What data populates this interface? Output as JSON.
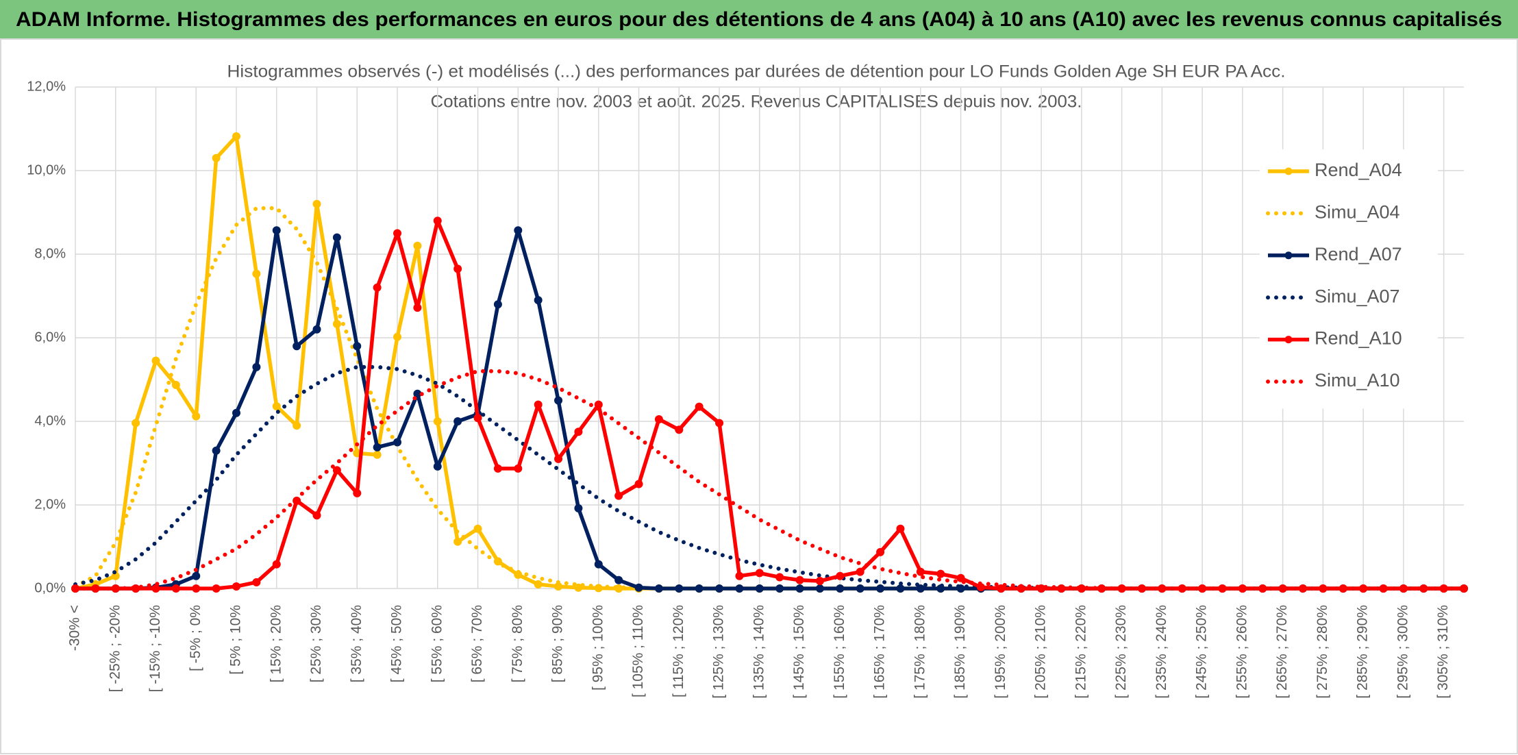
{
  "header": {
    "title": "ADAM Informe. Histogrammes des performances en euros pour des détentions de 4 ans (A04) à 10 ans (A10) avec les revenus connus capitalisés"
  },
  "chart_data": {
    "type": "line",
    "title": "Histogrammes observés (-) et modélisés (...) des performances par durées de détention pour LO Funds Golden Age SH EUR PA Acc.",
    "subtitle": "Cotations entre nov. 2003 et août. 2025. Revenus CAPITALISES depuis nov. 2003.",
    "categories": [
      "-30% <",
      null,
      "[ -25% ; -20%",
      null,
      "[ -15% ; -10%",
      null,
      "[ -5% ; 0%",
      null,
      "[ 5% ; 10%",
      null,
      "[ 15% ; 20%",
      null,
      "[ 25% ; 30%",
      null,
      "[ 35% ; 40%",
      null,
      "[ 45% ; 50%",
      null,
      "[ 55% ; 60%",
      null,
      "[ 65% ; 70%",
      null,
      "[ 75% ; 80%",
      null,
      "[ 85% ; 90%",
      null,
      "[ 95% ; 100%",
      null,
      "[ 105% ; 110%",
      null,
      "[ 115% ; 120%",
      null,
      "[ 125% ; 130%",
      null,
      "[ 135% ; 140%",
      null,
      "[ 145% ; 150%",
      null,
      "[ 155% ; 160%",
      null,
      "[ 165% ; 170%",
      null,
      "[ 175% ; 180%",
      null,
      "[ 185% ; 190%",
      null,
      "[ 195% ; 200%",
      null,
      "[ 205% ; 210%",
      null,
      "[ 215% ; 220%",
      null,
      "[ 225% ; 230%",
      null,
      "[ 235% ; 240%",
      null,
      "[ 245% ; 250%",
      null,
      "[ 255% ; 260%",
      null,
      "[ 265% ; 270%",
      null,
      "[ 275% ; 280%",
      null,
      "[ 285% ; 290%",
      null,
      "[ 295% ; 300%",
      null,
      "[ 305% ; 310%",
      null
    ],
    "series": [
      {
        "name": "Rend_A04",
        "color": "#FFC000",
        "style": "solid",
        "values": [
          0,
          0.1,
          0.3,
          3.96,
          5.45,
          4.87,
          4.12,
          10.3,
          10.82,
          7.53,
          4.36,
          3.9,
          9.2,
          6.33,
          3.24,
          3.2,
          6.02,
          8.2,
          4.0,
          1.12,
          1.43,
          0.65,
          0.33,
          0.1,
          0.05,
          0.02,
          0.01,
          0,
          0,
          0,
          0,
          0,
          0,
          0,
          0,
          0,
          0,
          0,
          0,
          0,
          0,
          0,
          0,
          0,
          0,
          0,
          0,
          0,
          0,
          0,
          0,
          0,
          0,
          0,
          0,
          0,
          0,
          0,
          0,
          0,
          0,
          0,
          0,
          0,
          0,
          0,
          0,
          0,
          0,
          0
        ]
      },
      {
        "name": "Simu_A04",
        "color": "#FFC000",
        "style": "dotted",
        "values": [
          0.05,
          0.3,
          1.1,
          2.3,
          3.9,
          5.5,
          6.8,
          7.9,
          8.7,
          9.1,
          9.1,
          8.6,
          7.8,
          6.7,
          5.5,
          4.3,
          3.4,
          2.6,
          1.9,
          1.35,
          0.95,
          0.6,
          0.4,
          0.25,
          0.15,
          0.09,
          0.05,
          0.03,
          0.02,
          0,
          0,
          0,
          0,
          0,
          0,
          0,
          0,
          0,
          0,
          0,
          0,
          0,
          0,
          0,
          0,
          0,
          0,
          0,
          0,
          0,
          0,
          0,
          0,
          0,
          0,
          0,
          0,
          0,
          0,
          0,
          0,
          0,
          0,
          0,
          0,
          0,
          0,
          0,
          0,
          0
        ]
      },
      {
        "name": "Rend_A07",
        "color": "#002060",
        "style": "solid",
        "values": [
          0,
          0,
          0,
          0,
          0.02,
          0.1,
          0.3,
          3.3,
          4.2,
          5.3,
          8.57,
          5.8,
          6.2,
          8.4,
          5.8,
          3.38,
          3.5,
          4.66,
          2.92,
          4.0,
          4.17,
          6.8,
          8.57,
          6.9,
          4.5,
          1.92,
          0.58,
          0.2,
          0.02,
          0,
          0,
          0,
          0,
          0,
          0,
          0,
          0,
          0,
          0,
          0,
          0,
          0,
          0,
          0,
          0,
          0,
          0,
          0,
          0,
          0,
          0,
          0,
          0,
          0,
          0,
          0,
          0,
          0,
          0,
          0,
          0,
          0,
          0,
          0,
          0,
          0,
          0,
          0,
          0,
          0
        ]
      },
      {
        "name": "Simu_A07",
        "color": "#002060",
        "style": "dotted",
        "values": [
          0.1,
          0.2,
          0.4,
          0.7,
          1.1,
          1.6,
          2.1,
          2.6,
          3.2,
          3.7,
          4.2,
          4.6,
          4.9,
          5.15,
          5.3,
          5.3,
          5.25,
          5.1,
          4.9,
          4.6,
          4.25,
          3.9,
          3.55,
          3.2,
          2.85,
          2.5,
          2.15,
          1.85,
          1.6,
          1.35,
          1.15,
          0.97,
          0.82,
          0.68,
          0.57,
          0.47,
          0.39,
          0.31,
          0.25,
          0.2,
          0.16,
          0.12,
          0.09,
          0.07,
          0.05,
          0.04,
          0.03,
          0.02,
          0.01,
          0,
          0,
          0,
          0,
          0,
          0,
          0,
          0,
          0,
          0,
          0,
          0,
          0,
          0,
          0,
          0,
          0,
          0,
          0,
          0,
          0
        ]
      },
      {
        "name": "Rend_A10",
        "color": "#FF0000",
        "style": "solid",
        "values": [
          0,
          0,
          0,
          0,
          0,
          0,
          0,
          0,
          0.05,
          0.15,
          0.58,
          2.1,
          1.75,
          2.83,
          2.28,
          7.2,
          8.5,
          6.72,
          8.8,
          7.65,
          4.08,
          2.87,
          2.87,
          4.4,
          3.1,
          3.75,
          4.4,
          2.22,
          2.5,
          4.05,
          3.8,
          4.35,
          3.96,
          0.3,
          0.37,
          0.27,
          0.2,
          0.18,
          0.3,
          0.4,
          0.87,
          1.43,
          0.4,
          0.35,
          0.25,
          0.03,
          0,
          0,
          0,
          0,
          0,
          0,
          0,
          0,
          0,
          0,
          0,
          0,
          0,
          0,
          0,
          0,
          0,
          0,
          0,
          0,
          0,
          0,
          0,
          0
        ]
      },
      {
        "name": "Simu_A10",
        "color": "#FF0000",
        "style": "dotted",
        "values": [
          0,
          0,
          0,
          0.02,
          0.1,
          0.25,
          0.45,
          0.7,
          0.95,
          1.3,
          1.7,
          2.15,
          2.6,
          3.0,
          3.45,
          3.9,
          4.25,
          4.6,
          4.85,
          5.05,
          5.2,
          5.2,
          5.15,
          5.0,
          4.8,
          4.55,
          4.3,
          3.95,
          3.6,
          3.25,
          2.9,
          2.55,
          2.25,
          1.95,
          1.65,
          1.4,
          1.15,
          0.95,
          0.75,
          0.6,
          0.47,
          0.37,
          0.28,
          0.21,
          0.16,
          0.12,
          0.09,
          0.06,
          0.04,
          0.03,
          0.02,
          0.01,
          0,
          0,
          0,
          0,
          0,
          0,
          0,
          0,
          0,
          0,
          0,
          0,
          0,
          0,
          0,
          0,
          0,
          0
        ]
      }
    ],
    "ylim": [
      0,
      12
    ],
    "yticks": [
      {
        "value": 0,
        "label": "0,0%"
      },
      {
        "value": 2,
        "label": "2,0%"
      },
      {
        "value": 4,
        "label": "4,0%"
      },
      {
        "value": 6,
        "label": "6,0%"
      },
      {
        "value": 8,
        "label": "8,0%"
      },
      {
        "value": 10,
        "label": "10,0%"
      },
      {
        "value": 12,
        "label": "12,0%"
      }
    ],
    "grid": true,
    "legend": "right"
  }
}
